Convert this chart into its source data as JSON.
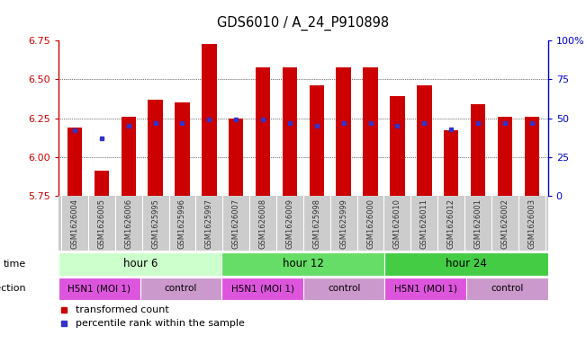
{
  "title": "GDS6010 / A_24_P910898",
  "samples": [
    "GSM1626004",
    "GSM1626005",
    "GSM1626006",
    "GSM1625995",
    "GSM1625996",
    "GSM1625997",
    "GSM1626007",
    "GSM1626008",
    "GSM1626009",
    "GSM1625998",
    "GSM1625999",
    "GSM1626000",
    "GSM1626010",
    "GSM1626011",
    "GSM1626012",
    "GSM1626001",
    "GSM1626002",
    "GSM1626003"
  ],
  "bar_values": [
    6.19,
    5.91,
    6.26,
    6.37,
    6.35,
    6.73,
    6.25,
    6.58,
    6.58,
    6.46,
    6.58,
    6.58,
    6.39,
    6.46,
    6.17,
    6.34,
    6.26,
    6.26
  ],
  "blue_values": [
    6.17,
    6.12,
    6.2,
    6.22,
    6.22,
    6.24,
    6.24,
    6.24,
    6.22,
    6.2,
    6.22,
    6.22,
    6.2,
    6.22,
    6.18,
    6.22,
    6.22,
    6.22
  ],
  "ymin": 5.75,
  "ymax": 6.75,
  "yticks": [
    5.75,
    6.0,
    6.25,
    6.5,
    6.75
  ],
  "right_yticks": [
    0,
    25,
    50,
    75,
    100
  ],
  "bar_color": "#cc0000",
  "blue_color": "#3333cc",
  "time_groups": [
    {
      "label": "hour 6",
      "start": 0,
      "end": 6,
      "color": "#ccffcc"
    },
    {
      "label": "hour 12",
      "start": 6,
      "end": 12,
      "color": "#66dd66"
    },
    {
      "label": "hour 24",
      "start": 12,
      "end": 18,
      "color": "#44cc44"
    }
  ],
  "infection_groups": [
    {
      "label": "H5N1 (MOI 1)",
      "start": 0,
      "end": 3,
      "color": "#dd55dd"
    },
    {
      "label": "control",
      "start": 3,
      "end": 6,
      "color": "#cc99cc"
    },
    {
      "label": "H5N1 (MOI 1)",
      "start": 6,
      "end": 9,
      "color": "#dd55dd"
    },
    {
      "label": "control",
      "start": 9,
      "end": 12,
      "color": "#cc99cc"
    },
    {
      "label": "H5N1 (MOI 1)",
      "start": 12,
      "end": 15,
      "color": "#dd55dd"
    },
    {
      "label": "control",
      "start": 15,
      "end": 18,
      "color": "#cc99cc"
    }
  ],
  "left_axis_color": "#cc0000",
  "right_axis_color": "#0000cc",
  "bar_width": 0.55,
  "sample_bg_color": "#cccccc",
  "grid_dotted_color": "#555555"
}
